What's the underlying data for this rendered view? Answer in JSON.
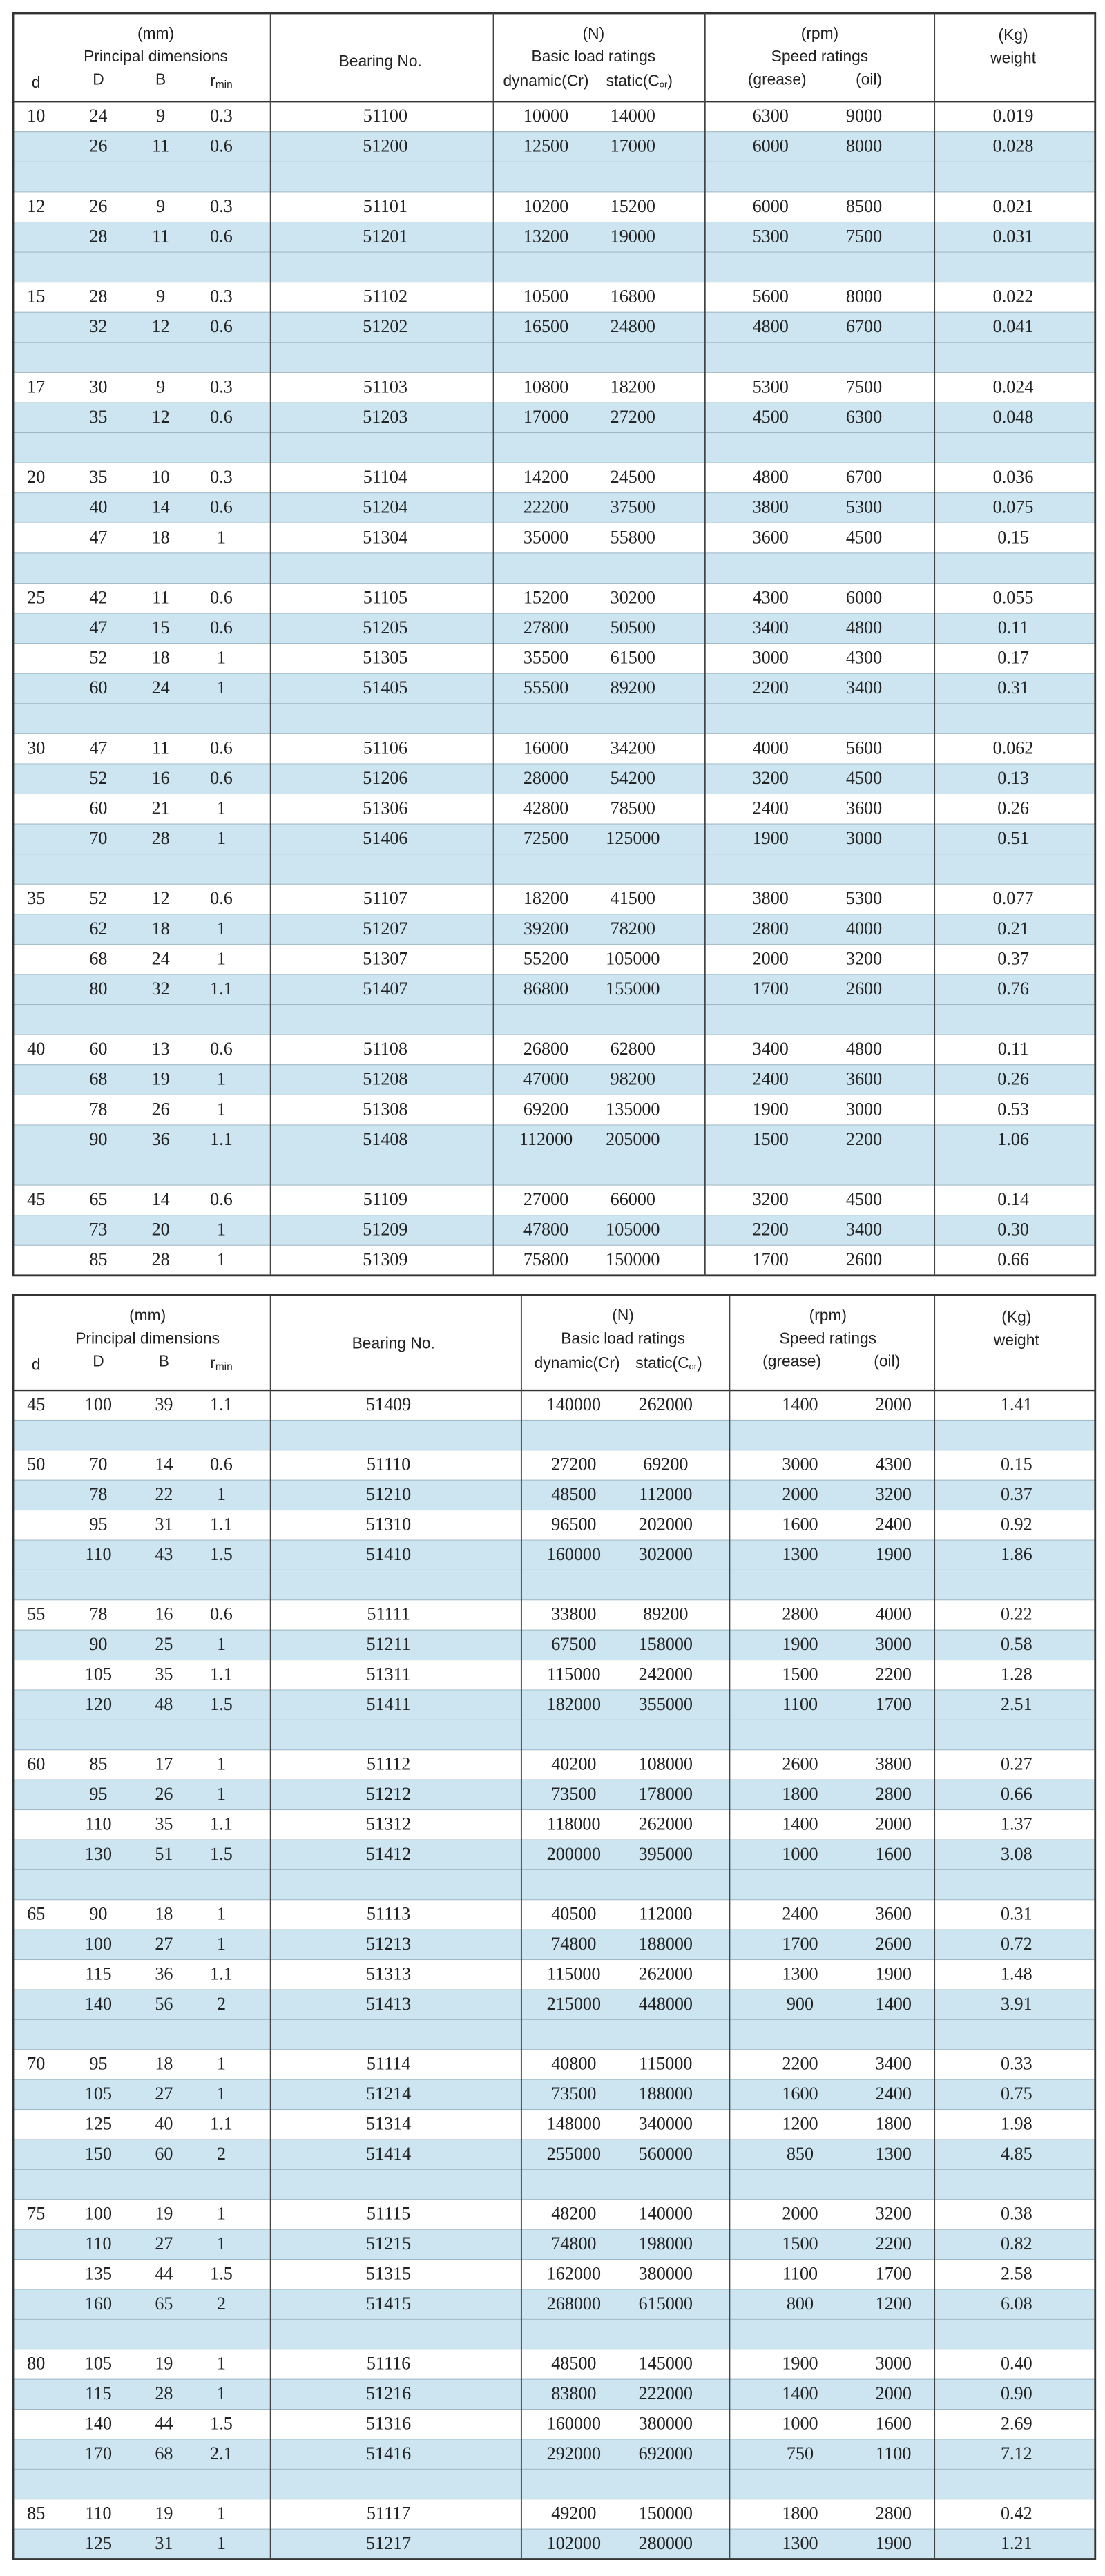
{
  "header": {
    "mm": "(mm)",
    "principal": "Principal dimensions",
    "d": "d",
    "D": "D",
    "B": "B",
    "r": "r",
    "rsub": "min",
    "bearing": "Bearing No.",
    "n": "(N)",
    "basic": "Basic load ratings",
    "dynamic": "dynamic(Cr)",
    "static_pre": "static(C",
    "static_sub": "or",
    "static_post": ")",
    "rpm": "(rpm)",
    "speed": "Speed ratings",
    "grease": "(grease)",
    "oil": "(oil)",
    "kg": "(Kg)",
    "weight": "weight"
  },
  "tables": [
    {
      "groups": [
        {
          "d": 10,
          "rows": [
            [
              24,
              9,
              0.3,
              51100,
              10000,
              14000,
              6300,
              9000,
              0.019
            ],
            [
              26,
              11,
              0.6,
              51200,
              12500,
              17000,
              6000,
              8000,
              0.028
            ]
          ]
        },
        {
          "d": 12,
          "rows": [
            [
              26,
              9,
              0.3,
              51101,
              10200,
              15200,
              6000,
              8500,
              0.021
            ],
            [
              28,
              11,
              0.6,
              51201,
              13200,
              19000,
              5300,
              7500,
              0.031
            ]
          ]
        },
        {
          "d": 15,
          "rows": [
            [
              28,
              9,
              0.3,
              51102,
              10500,
              16800,
              5600,
              8000,
              0.022
            ],
            [
              32,
              12,
              0.6,
              51202,
              16500,
              24800,
              4800,
              6700,
              0.041
            ]
          ]
        },
        {
          "d": 17,
          "rows": [
            [
              30,
              9,
              0.3,
              51103,
              10800,
              18200,
              5300,
              7500,
              0.024
            ],
            [
              35,
              12,
              0.6,
              51203,
              17000,
              27200,
              4500,
              6300,
              0.048
            ]
          ]
        },
        {
          "d": 20,
          "rows": [
            [
              35,
              10,
              0.3,
              51104,
              14200,
              24500,
              4800,
              6700,
              0.036
            ],
            [
              40,
              14,
              0.6,
              51204,
              22200,
              37500,
              3800,
              5300,
              0.075
            ],
            [
              47,
              18,
              1,
              51304,
              35000,
              55800,
              3600,
              4500,
              0.15
            ]
          ]
        },
        {
          "d": 25,
          "rows": [
            [
              42,
              11,
              0.6,
              51105,
              15200,
              30200,
              4300,
              6000,
              0.055
            ],
            [
              47,
              15,
              0.6,
              51205,
              27800,
              50500,
              3400,
              4800,
              0.11
            ],
            [
              52,
              18,
              1,
              51305,
              35500,
              61500,
              3000,
              4300,
              0.17
            ],
            [
              60,
              24,
              1,
              51405,
              55500,
              89200,
              2200,
              3400,
              0.31
            ]
          ]
        },
        {
          "d": 30,
          "rows": [
            [
              47,
              11,
              0.6,
              51106,
              16000,
              34200,
              4000,
              5600,
              0.062
            ],
            [
              52,
              16,
              0.6,
              51206,
              28000,
              54200,
              3200,
              4500,
              0.13
            ],
            [
              60,
              21,
              1,
              51306,
              42800,
              78500,
              2400,
              3600,
              0.26
            ],
            [
              70,
              28,
              1,
              51406,
              72500,
              125000,
              1900,
              3000,
              0.51
            ]
          ]
        },
        {
          "d": 35,
          "rows": [
            [
              52,
              12,
              0.6,
              51107,
              18200,
              41500,
              3800,
              5300,
              0.077
            ],
            [
              62,
              18,
              1,
              51207,
              39200,
              78200,
              2800,
              4000,
              0.21
            ],
            [
              68,
              24,
              1,
              51307,
              55200,
              105000,
              2000,
              3200,
              0.37
            ],
            [
              80,
              32,
              1.1,
              51407,
              86800,
              155000,
              1700,
              2600,
              0.76
            ]
          ]
        },
        {
          "d": 40,
          "rows": [
            [
              60,
              13,
              0.6,
              51108,
              26800,
              62800,
              3400,
              4800,
              0.11
            ],
            [
              68,
              19,
              1,
              51208,
              47000,
              98200,
              2400,
              3600,
              0.26
            ],
            [
              78,
              26,
              1,
              51308,
              69200,
              135000,
              1900,
              3000,
              0.53
            ],
            [
              90,
              36,
              1.1,
              51408,
              112000,
              205000,
              1500,
              2200,
              1.06
            ]
          ]
        },
        {
          "d": 45,
          "rows": [
            [
              65,
              14,
              0.6,
              51109,
              27000,
              66000,
              3200,
              4500,
              0.14
            ],
            [
              73,
              20,
              1,
              51209,
              47800,
              105000,
              2200,
              3400,
              "0.30"
            ],
            [
              85,
              28,
              1,
              51309,
              75800,
              150000,
              1700,
              2600,
              0.66
            ]
          ]
        }
      ]
    },
    {
      "groups": [
        {
          "d": 45,
          "rows": [
            [
              100,
              39,
              1.1,
              51409,
              140000,
              262000,
              1400,
              2000,
              1.41
            ]
          ]
        },
        {
          "d": 50,
          "rows": [
            [
              70,
              14,
              0.6,
              51110,
              27200,
              69200,
              3000,
              4300,
              0.15
            ],
            [
              78,
              22,
              1,
              51210,
              48500,
              112000,
              2000,
              3200,
              0.37
            ],
            [
              95,
              31,
              1.1,
              51310,
              96500,
              202000,
              1600,
              2400,
              0.92
            ],
            [
              110,
              43,
              1.5,
              51410,
              160000,
              302000,
              1300,
              1900,
              1.86
            ]
          ]
        },
        {
          "d": 55,
          "rows": [
            [
              78,
              16,
              0.6,
              51111,
              33800,
              89200,
              2800,
              4000,
              0.22
            ],
            [
              90,
              25,
              1,
              51211,
              67500,
              158000,
              1900,
              3000,
              0.58
            ],
            [
              105,
              35,
              1.1,
              51311,
              115000,
              242000,
              1500,
              2200,
              1.28
            ],
            [
              120,
              48,
              1.5,
              51411,
              182000,
              355000,
              1100,
              1700,
              2.51
            ]
          ]
        },
        {
          "d": 60,
          "rows": [
            [
              85,
              17,
              1,
              51112,
              40200,
              108000,
              2600,
              3800,
              0.27
            ],
            [
              95,
              26,
              1,
              51212,
              73500,
              178000,
              1800,
              2800,
              0.66
            ],
            [
              110,
              35,
              1.1,
              51312,
              118000,
              262000,
              1400,
              2000,
              1.37
            ],
            [
              130,
              51,
              1.5,
              51412,
              200000,
              395000,
              1000,
              1600,
              3.08
            ]
          ]
        },
        {
          "d": 65,
          "rows": [
            [
              90,
              18,
              1,
              51113,
              40500,
              112000,
              2400,
              3600,
              0.31
            ],
            [
              100,
              27,
              1,
              51213,
              74800,
              188000,
              1700,
              2600,
              0.72
            ],
            [
              115,
              36,
              1.1,
              51313,
              115000,
              262000,
              1300,
              1900,
              1.48
            ],
            [
              140,
              56,
              2,
              51413,
              215000,
              448000,
              900,
              1400,
              3.91
            ]
          ]
        },
        {
          "d": 70,
          "rows": [
            [
              95,
              18,
              1,
              51114,
              40800,
              115000,
              2200,
              3400,
              0.33
            ],
            [
              105,
              27,
              1,
              51214,
              73500,
              188000,
              1600,
              2400,
              0.75
            ],
            [
              125,
              40,
              1.1,
              51314,
              148000,
              340000,
              1200,
              1800,
              1.98
            ],
            [
              150,
              60,
              2,
              51414,
              255000,
              560000,
              850,
              1300,
              4.85
            ]
          ]
        },
        {
          "d": 75,
          "rows": [
            [
              100,
              19,
              1,
              51115,
              48200,
              140000,
              2000,
              3200,
              0.38
            ],
            [
              110,
              27,
              1,
              51215,
              74800,
              198000,
              1500,
              2200,
              0.82
            ],
            [
              135,
              44,
              1.5,
              51315,
              162000,
              380000,
              1100,
              1700,
              2.58
            ],
            [
              160,
              65,
              2,
              51415,
              268000,
              615000,
              800,
              1200,
              6.08
            ]
          ]
        },
        {
          "d": 80,
          "rows": [
            [
              105,
              19,
              1,
              51116,
              48500,
              145000,
              1900,
              3000,
              "0.40"
            ],
            [
              115,
              28,
              1,
              51216,
              83800,
              222000,
              1400,
              2000,
              "0.90"
            ],
            [
              140,
              44,
              1.5,
              51316,
              160000,
              380000,
              1000,
              1600,
              2.69
            ],
            [
              170,
              68,
              2.1,
              51416,
              292000,
              692000,
              750,
              1100,
              7.12
            ]
          ]
        },
        {
          "d": 85,
          "rows": [
            [
              110,
              19,
              1,
              51117,
              49200,
              150000,
              1800,
              2800,
              0.42
            ],
            [
              125,
              31,
              1,
              51217,
              102000,
              280000,
              1300,
              1900,
              1.21
            ]
          ]
        }
      ]
    }
  ]
}
